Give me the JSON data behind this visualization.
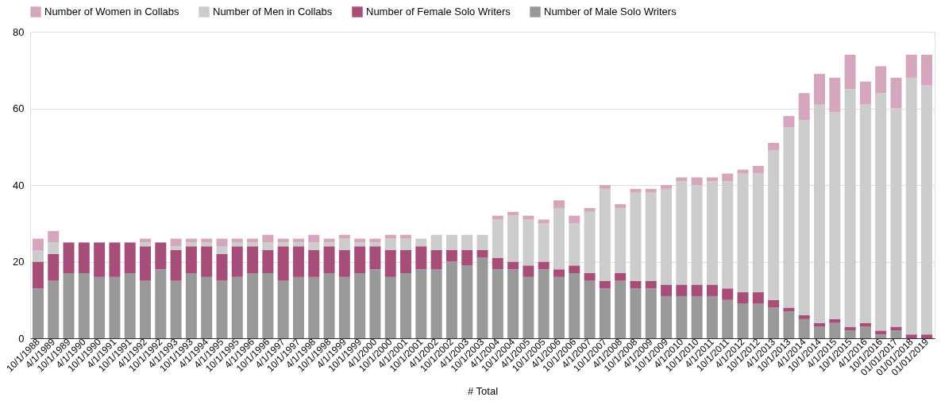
{
  "chart_data": {
    "type": "bar",
    "stacked": true,
    "xlabel": "# Total",
    "categories": [
      "10/1/1988",
      "4/1/1989",
      "10/1/1989",
      "4/1/1990",
      "10/1/1990",
      "4/1/1991",
      "10/1/1991",
      "4/1/1992",
      "10/1/1992",
      "4/1/1993",
      "10/1/1993",
      "4/1/1994",
      "4/1/1995",
      "10/1/1995",
      "4/1/1996",
      "10/1/1996",
      "4/1/1997",
      "10/1/1997",
      "4/1/1998",
      "10/1/1998",
      "4/1/1999",
      "10/1/1999",
      "4/1/2000",
      "10/1/2000",
      "4/1/2001",
      "10/1/2001",
      "4/1/2002",
      "10/1/2002",
      "4/1/2003",
      "10/1/2003",
      "4/1/2004",
      "10/1/2004",
      "4/1/2005",
      "10/1/2005",
      "4/1/2006",
      "10/1/2006",
      "4/1/2007",
      "10/1/2007",
      "4/1/2008",
      "10/1/2008",
      "4/1/2009",
      "10/1/2009",
      "4/1/2010",
      "10/1/2010",
      "4/1/2011",
      "10/1/2011",
      "4/1/2012",
      "10/1/2012",
      "4/1/2013",
      "10/1/2013",
      "4/1/2014",
      "10/1/2014",
      "4/1/2015",
      "10/1/2015",
      "4/1/2016",
      "10/1/2016",
      "01/01/2017",
      "01/01/2018",
      "01/01/2019"
    ],
    "series": [
      {
        "name": "Number of Male Solo Writers",
        "color": "#999999",
        "values": [
          13,
          15,
          17,
          17,
          16,
          16,
          17,
          15,
          18,
          15,
          17,
          16,
          15,
          16,
          17,
          17,
          15,
          16,
          16,
          17,
          16,
          17,
          18,
          16,
          17,
          18,
          18,
          20,
          19,
          21,
          18,
          18,
          16,
          18,
          16,
          17,
          15,
          13,
          15,
          13,
          13,
          11,
          11,
          11,
          11,
          10,
          9,
          9,
          8,
          7,
          5,
          3,
          4,
          2,
          3,
          1,
          2,
          0,
          0
        ]
      },
      {
        "name": "Number of Female Solo Writers",
        "color": "#a64d79",
        "values": [
          7,
          7,
          8,
          8,
          9,
          9,
          8,
          9,
          7,
          8,
          7,
          8,
          7,
          8,
          7,
          6,
          9,
          8,
          7,
          7,
          7,
          7,
          6,
          7,
          6,
          6,
          5,
          3,
          4,
          2,
          3,
          2,
          3,
          2,
          2,
          2,
          2,
          2,
          2,
          2,
          2,
          3,
          3,
          3,
          3,
          3,
          3,
          3,
          2,
          1,
          1,
          1,
          1,
          1,
          1,
          1,
          1,
          1,
          1
        ]
      },
      {
        "name": "Number of Men in Collabs",
        "color": "#cccccc",
        "values": [
          3,
          3,
          0,
          0,
          0,
          0,
          0,
          1,
          0,
          1,
          1,
          1,
          2,
          1,
          1,
          2,
          1,
          1,
          2,
          1,
          3,
          1,
          1,
          3,
          3,
          2,
          4,
          4,
          4,
          4,
          10,
          12,
          12,
          10,
          16,
          11,
          16,
          24,
          17,
          23,
          23,
          25,
          27,
          26,
          27,
          28,
          31,
          31,
          39,
          47,
          51,
          57,
          54,
          62,
          57,
          62,
          57,
          67,
          65
        ]
      },
      {
        "name": "Number of Women in Collabs",
        "color": "#d5a6bd",
        "values": [
          3,
          3,
          0,
          0,
          0,
          0,
          0,
          1,
          0,
          2,
          1,
          1,
          2,
          1,
          1,
          2,
          1,
          1,
          2,
          1,
          1,
          1,
          1,
          1,
          1,
          0,
          0,
          0,
          0,
          0,
          1,
          1,
          1,
          1,
          2,
          2,
          1,
          1,
          1,
          1,
          1,
          1,
          1,
          2,
          1,
          2,
          1,
          2,
          2,
          3,
          7,
          8,
          9,
          9,
          6,
          7,
          8,
          6,
          8
        ]
      }
    ],
    "ylim": [
      0,
      80
    ],
    "yticks": [
      0,
      20,
      40,
      60,
      80
    ],
    "grid": "y",
    "legend": "top"
  }
}
